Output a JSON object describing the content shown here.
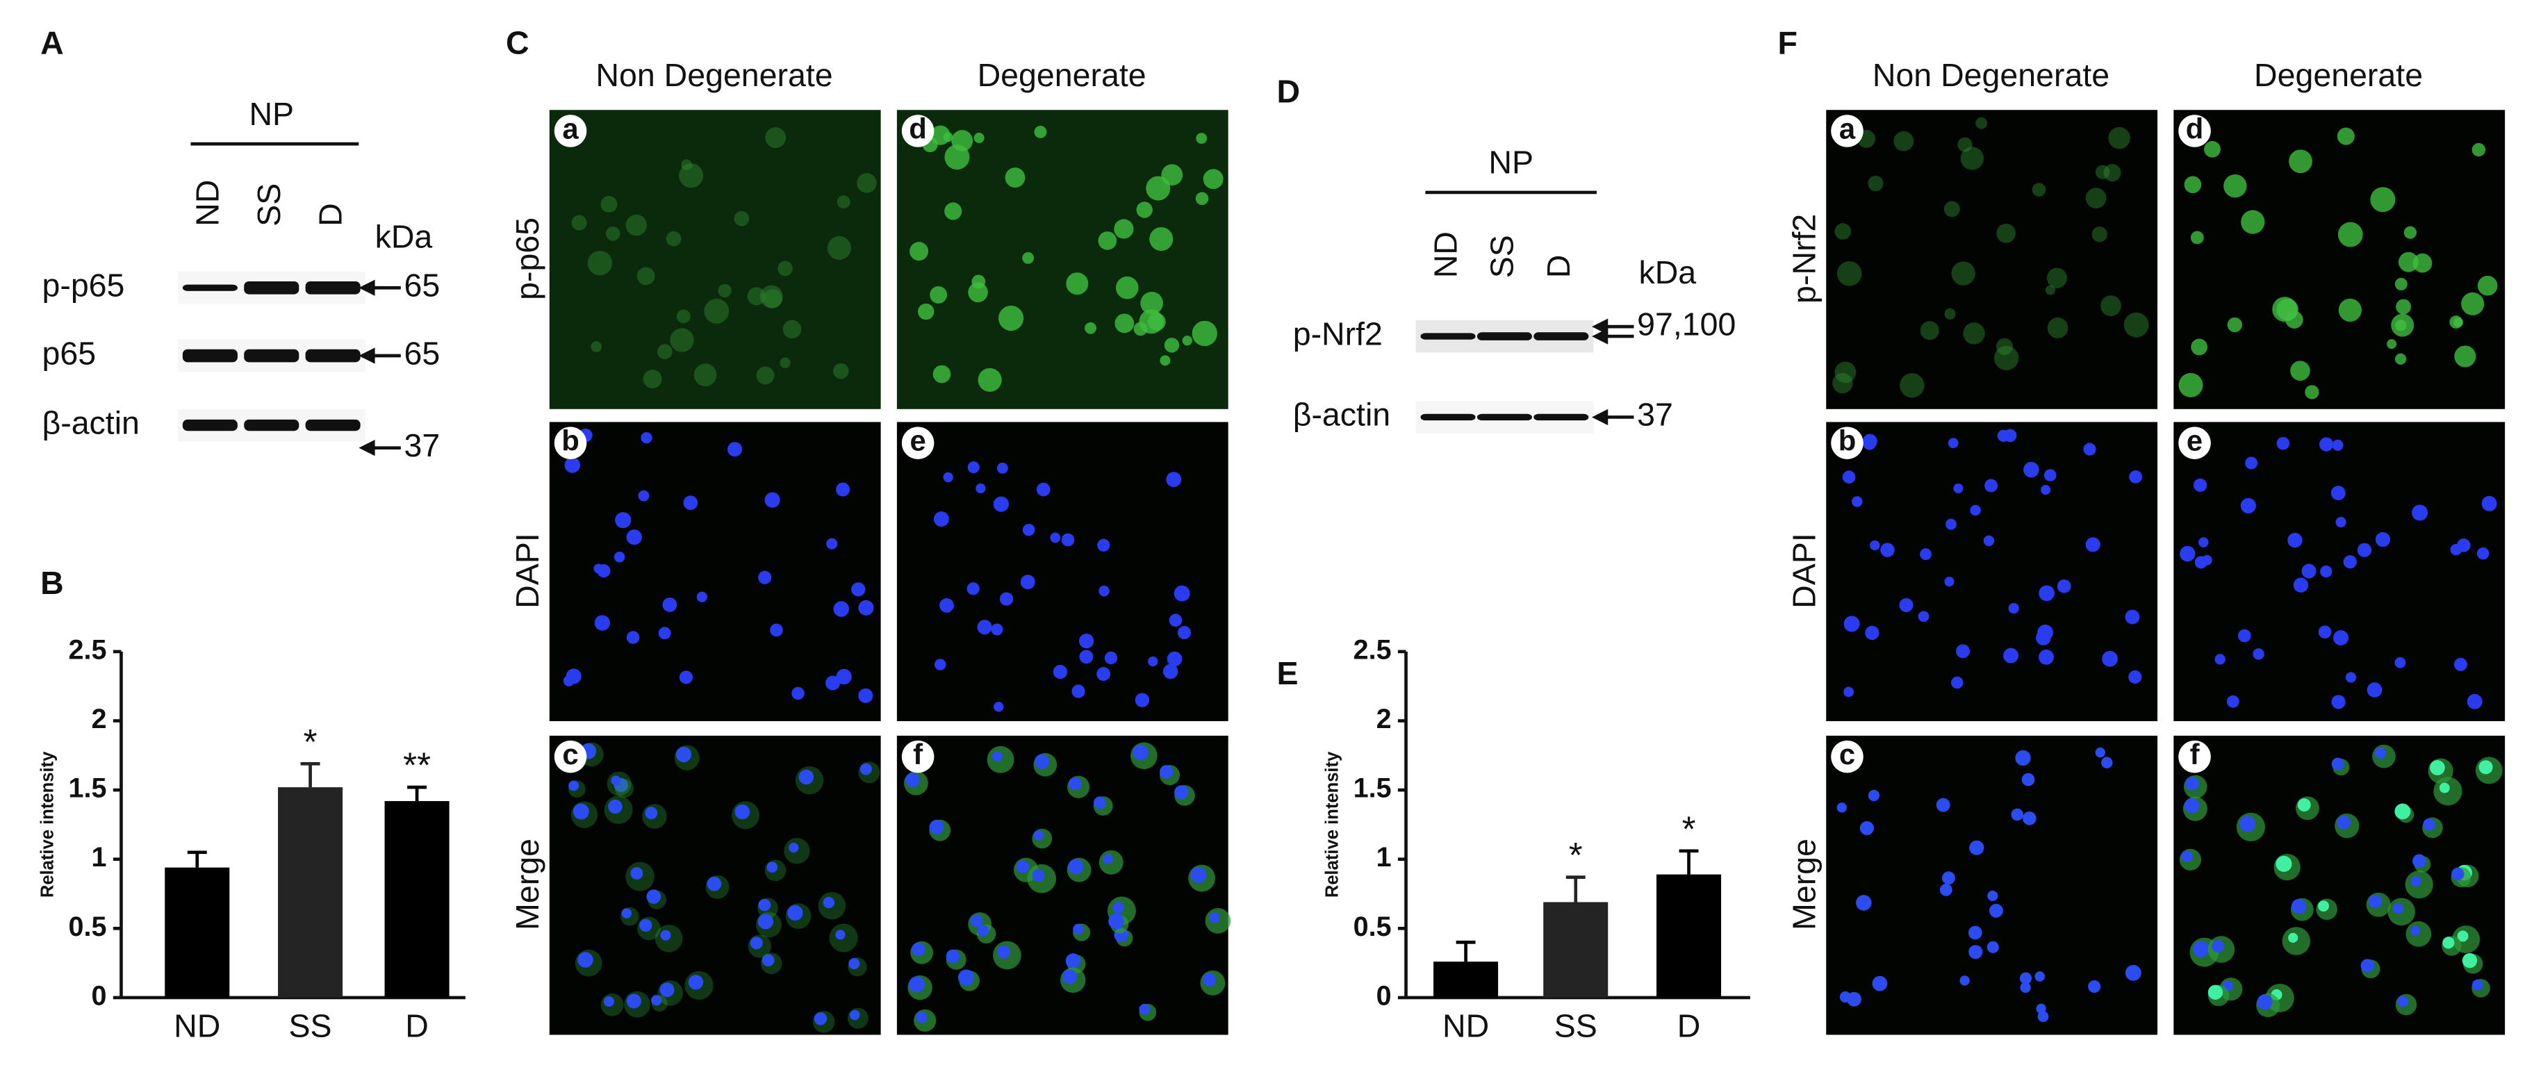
{
  "panel_labels": [
    "A",
    "B",
    "C",
    "D",
    "E",
    "F"
  ],
  "blot_A": {
    "group": "NP",
    "lanes": [
      "ND",
      "SS",
      "D"
    ],
    "unit": "kDa",
    "rows": [
      {
        "label": "p-p65",
        "marker": "65"
      },
      {
        "label": "p65",
        "marker": "65"
      },
      {
        "label": "β-actin",
        "marker": "37"
      }
    ]
  },
  "blot_D": {
    "group": "NP",
    "lanes": [
      "ND",
      "SS",
      "D"
    ],
    "unit": "kDa",
    "rows": [
      {
        "label": "p-Nrf2",
        "marker": "97,100"
      },
      {
        "label": "β-actin",
        "marker": "37"
      }
    ]
  },
  "images_C": {
    "columns": [
      "Non Degenerate",
      "Degenerate"
    ],
    "rows": [
      "p-p65",
      "DAPI",
      "Merge"
    ],
    "tiles": [
      "a",
      "b",
      "c",
      "d",
      "e",
      "f"
    ]
  },
  "images_F": {
    "columns": [
      "Non Degenerate",
      "Degenerate"
    ],
    "rows": [
      "p-Nrf2",
      "DAPI",
      "Merge"
    ],
    "tiles": [
      "a",
      "b",
      "c",
      "d",
      "e",
      "f"
    ]
  },
  "chart_data": [
    {
      "type": "bar",
      "y_label": "Relative intensity",
      "categories": [
        "ND",
        "SS",
        "D"
      ],
      "values": [
        0.94,
        1.52,
        1.42
      ],
      "errors": [
        0.11,
        0.17,
        0.1
      ],
      "significance": [
        null,
        "*",
        "**"
      ],
      "colors": [
        "#000000",
        "#242424",
        "#000000"
      ],
      "ylim": [
        0,
        2.5
      ],
      "yticks": [
        0,
        0.5,
        1,
        1.5,
        2,
        2.5
      ]
    },
    {
      "type": "bar",
      "y_label": "Relative intensity",
      "categories": [
        "ND",
        "SS",
        "D"
      ],
      "values": [
        0.26,
        0.69,
        0.89
      ],
      "errors": [
        0.14,
        0.18,
        0.17
      ],
      "significance": [
        null,
        "*",
        "*"
      ],
      "colors": [
        "#000000",
        "#242424",
        "#000000"
      ],
      "ylim": [
        0,
        2.5
      ],
      "yticks": [
        0,
        0.5,
        1,
        1.5,
        2,
        2.5
      ]
    }
  ]
}
